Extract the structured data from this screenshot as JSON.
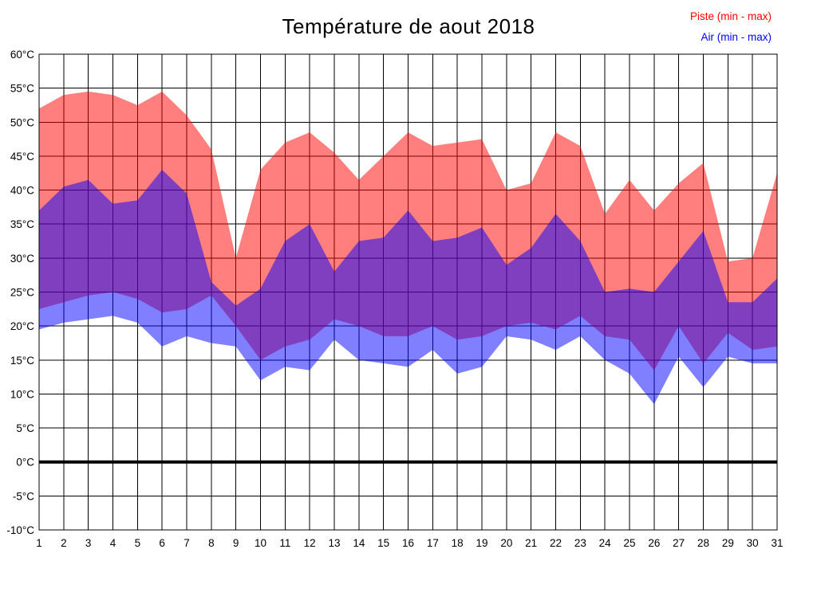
{
  "chart": {
    "title": "Température de aout 2018",
    "legend": [
      {
        "label": "Piste (min - max)",
        "color": "#ff0000"
      },
      {
        "label": "Air (min - max)",
        "color": "#0000ff"
      }
    ]
  },
  "chart_data": {
    "type": "area",
    "title": "Température de aout 2018",
    "legend_position": "top-right",
    "grid": true,
    "ylim": [
      -10,
      60
    ],
    "y_ticks": [
      60,
      55,
      50,
      45,
      40,
      35,
      30,
      25,
      20,
      15,
      10,
      5,
      0,
      -5,
      -10
    ],
    "y_tick_labels": [
      "60°C",
      "55°C",
      "50°C",
      "45°C",
      "40°C",
      "35°C",
      "30°C",
      "25°C",
      "20°C",
      "15°C",
      "10°C",
      "5°C",
      "0°C",
      "-5°C",
      "-10°C"
    ],
    "x": [
      1,
      2,
      3,
      4,
      5,
      6,
      7,
      8,
      9,
      10,
      11,
      12,
      13,
      14,
      15,
      16,
      17,
      18,
      19,
      20,
      21,
      22,
      23,
      24,
      25,
      26,
      27,
      28,
      29,
      30,
      31
    ],
    "zero_line": {
      "value": 0,
      "color": "#000000",
      "width": 4
    },
    "series": [
      {
        "name": "Piste (min - max)",
        "band": true,
        "color": "#ff0000",
        "opacity": 0.5,
        "max": [
          52,
          54,
          54.5,
          54,
          52.5,
          54.5,
          51,
          46,
          30,
          43,
          47,
          48.5,
          45.5,
          41.5,
          45,
          48.5,
          46.5,
          47,
          47.5,
          40,
          41,
          48.5,
          46.5,
          36.5,
          41.5,
          37,
          41,
          44,
          29.5,
          30,
          42.5
        ],
        "min": [
          22.5,
          23.5,
          24.5,
          25,
          24,
          22,
          22.5,
          24.5,
          20,
          15,
          17,
          18,
          21,
          20,
          18.5,
          18.5,
          20,
          18,
          18.5,
          20,
          20.5,
          19.5,
          21.5,
          18.5,
          18,
          13.5,
          20,
          14.5,
          19,
          16.5,
          17
        ]
      },
      {
        "name": "Air (min - max)",
        "band": true,
        "color": "#0000ff",
        "opacity": 0.5,
        "max": [
          37,
          40.5,
          41.5,
          38,
          38.5,
          43,
          39.5,
          26.5,
          23,
          25.5,
          32.5,
          35,
          28,
          32.5,
          33,
          37,
          32.5,
          33,
          34.5,
          29,
          31.5,
          36.5,
          32.5,
          25,
          25.5,
          25,
          29.5,
          34,
          23.5,
          23.5,
          27
        ],
        "min": [
          19.5,
          20.5,
          21,
          21.5,
          20.5,
          17,
          18.5,
          17.5,
          17,
          12,
          14,
          13.5,
          18,
          15,
          14.5,
          14,
          16.5,
          13,
          14,
          18.5,
          18,
          16.5,
          18.5,
          15,
          13,
          8.5,
          15.5,
          11,
          15.5,
          14.5,
          14.5
        ]
      }
    ]
  }
}
